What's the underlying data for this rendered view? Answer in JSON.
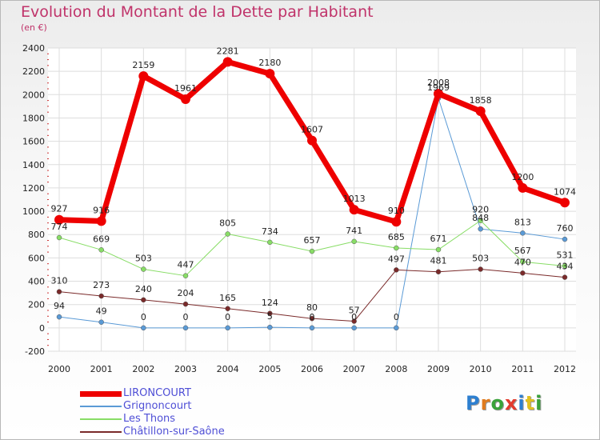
{
  "title": "Evolution du Montant de la Dette par Habitant",
  "subtitle": "(en €)",
  "logo": {
    "text": "Proxiti",
    "colors": [
      "#2d7fd0",
      "#e07b1e",
      "#3aa23a",
      "#e23b2e",
      "#2d7fd0",
      "#e0c020",
      "#3aa23a"
    ]
  },
  "colors": {
    "title": "#c0336a",
    "legend_text": "#4f4fd6"
  },
  "chart_data": {
    "type": "line",
    "title": "Evolution du Montant de la Dette par Habitant",
    "subtitle": "(en €)",
    "xlabel": "",
    "ylabel": "",
    "x": [
      "2000",
      "2001",
      "2002",
      "2003",
      "2004",
      "2005",
      "2006",
      "2007",
      "2008",
      "2009",
      "2010",
      "2011",
      "2012"
    ],
    "ylim": [
      -200,
      2400
    ],
    "yticks": [
      -200,
      0,
      200,
      400,
      600,
      800,
      1000,
      1200,
      1400,
      1600,
      1800,
      2000,
      2200,
      2400
    ],
    "grid": true,
    "legend": "bottom-left",
    "series": [
      {
        "name": "LIRONCOURT",
        "color": "#ee0000",
        "width": 7,
        "values": [
          927,
          916,
          2159,
          1961,
          2281,
          2180,
          1607,
          1013,
          910,
          2008,
          1858,
          1200,
          1074
        ],
        "labels": [
          "927",
          "916",
          "2159",
          "1961",
          "2281",
          "2180",
          "1607",
          "1013",
          "910",
          "2008",
          "1858",
          "1200",
          "1074"
        ]
      },
      {
        "name": "Grignoncourt",
        "color": "#5a9ad6",
        "width": 1,
        "values": [
          94,
          49,
          0,
          0,
          0,
          5,
          0,
          0,
          0,
          1969,
          848,
          813,
          760
        ],
        "labels": [
          "94",
          "49",
          "0",
          "0",
          "0",
          "5",
          "0",
          "0",
          "0",
          "1969",
          "848",
          "813",
          "760"
        ]
      },
      {
        "name": "Les Thons",
        "color": "#88dd66",
        "width": 1,
        "values": [
          774,
          669,
          503,
          447,
          805,
          734,
          657,
          741,
          685,
          671,
          920,
          567,
          531
        ],
        "labels": [
          "774",
          "669",
          "503",
          "447",
          "805",
          "734",
          "657",
          "741",
          "685",
          "671",
          "920",
          "567",
          "531"
        ]
      },
      {
        "name": "Châtillon-sur-Saône",
        "color": "#7a2a2a",
        "width": 1,
        "values": [
          310,
          273,
          240,
          204,
          165,
          124,
          80,
          57,
          497,
          481,
          503,
          470,
          434
        ],
        "labels": [
          "310",
          "273",
          "240",
          "204",
          "165",
          "124",
          "80",
          "57",
          "497",
          "481",
          "503",
          "470",
          "434"
        ]
      }
    ]
  }
}
